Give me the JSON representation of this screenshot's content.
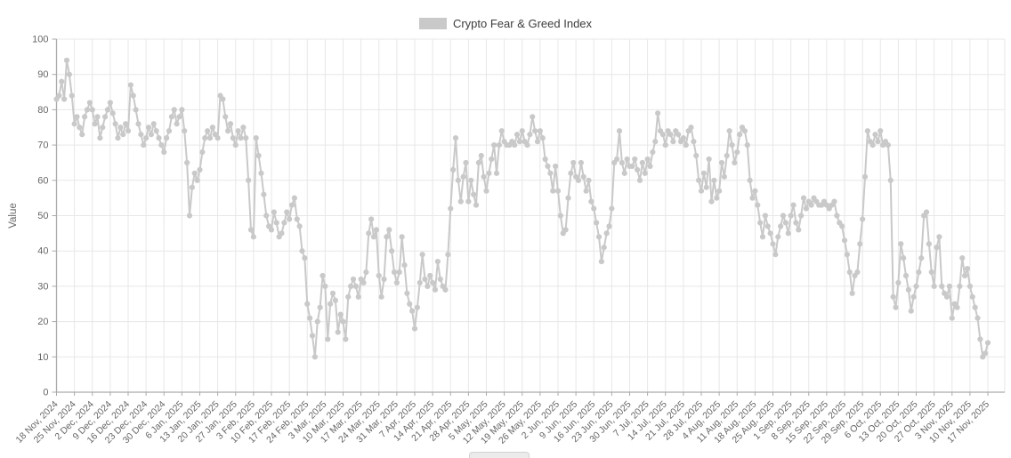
{
  "legend": {
    "items": [
      {
        "label": "Crypto Fear & Greed Index",
        "swatch_color": "#c9c9c9"
      }
    ]
  },
  "chart_data": {
    "type": "line",
    "title": "Crypto Fear & Greed Index",
    "xlabel": "",
    "ylabel": "Value",
    "ylim": [
      0,
      100
    ],
    "y_ticks": [
      0,
      10,
      20,
      30,
      40,
      50,
      60,
      70,
      80,
      90,
      100
    ],
    "grid": true,
    "legend_position": "top-center",
    "marker": "circle",
    "line_color": "#c9c9c9",
    "grid_color": "#e7e7e7",
    "axis_color": "#aaaaaa",
    "tick_text_color": "#666666",
    "days_per_x_tick": 7,
    "x_tick_labels": [
      "18 Nov, 2024",
      "25 Nov, 2024",
      "2 Dec, 2024",
      "9 Dec, 2024",
      "16 Dec, 2024",
      "23 Dec, 2024",
      "30 Dec, 2024",
      "6 Jan, 2025",
      "13 Jan, 2025",
      "20 Jan, 2025",
      "27 Jan, 2025",
      "3 Feb, 2025",
      "10 Feb, 2025",
      "17 Feb, 2025",
      "24 Feb, 2025",
      "3 Mar, 2025",
      "10 Mar, 2025",
      "17 Mar, 2025",
      "24 Mar, 2025",
      "31 Mar, 2025",
      "7 Apr, 2025",
      "14 Apr, 2025",
      "21 Apr, 2025",
      "28 Apr, 2025",
      "5 May, 2025",
      "12 May, 2025",
      "19 May, 2025",
      "26 May, 2025",
      "2 Jun, 2025",
      "9 Jun, 2025",
      "16 Jun, 2025",
      "23 Jun, 2025",
      "30 Jun, 2025",
      "7 Jul, 2025",
      "14 Jul, 2025",
      "21 Jul, 2025",
      "28 Jul, 2025",
      "4 Aug, 2025",
      "11 Aug, 2025",
      "18 Aug, 2025",
      "25 Aug, 2025",
      "1 Sep, 2025",
      "8 Sep, 2025",
      "15 Sep, 2025",
      "22 Sep, 2025",
      "29 Sep, 2025",
      "6 Oct, 2025",
      "13 Oct, 2025",
      "20 Oct, 2025",
      "27 Oct, 2025",
      "3 Nov, 2025",
      "10 Nov, 2025",
      "17 Nov, 2025"
    ],
    "series": [
      {
        "name": "Crypto Fear & Greed Index",
        "color": "#c9c9c9",
        "values": [
          83,
          84,
          88,
          83,
          94,
          90,
          84,
          76,
          78,
          75,
          73,
          78,
          80,
          82,
          80,
          76,
          78,
          72,
          75,
          78,
          80,
          82,
          79,
          76,
          72,
          75,
          73,
          76,
          74,
          87,
          84,
          80,
          76,
          73,
          70,
          72,
          75,
          73,
          76,
          74,
          72,
          70,
          68,
          72,
          74,
          78,
          80,
          76,
          78,
          80,
          74,
          65,
          50,
          58,
          62,
          60,
          63,
          68,
          72,
          74,
          72,
          75,
          73,
          72,
          84,
          83,
          78,
          74,
          76,
          72,
          70,
          74,
          72,
          75,
          72,
          60,
          46,
          44,
          72,
          67,
          62,
          56,
          50,
          47,
          46,
          51,
          48,
          44,
          45,
          48,
          51,
          49,
          53,
          55,
          49,
          47,
          40,
          38,
          25,
          21,
          16,
          10,
          20,
          24,
          33,
          30,
          15,
          25,
          28,
          26,
          17,
          22,
          20,
          15,
          27,
          30,
          32,
          30,
          27,
          32,
          31,
          34,
          45,
          49,
          44,
          46,
          33,
          27,
          32,
          44,
          46,
          40,
          34,
          31,
          34,
          44,
          36,
          28,
          25,
          23,
          18,
          24,
          31,
          39,
          32,
          30,
          33,
          31,
          29,
          37,
          32,
          30,
          29,
          39,
          52,
          63,
          72,
          60,
          54,
          61,
          65,
          54,
          60,
          56,
          53,
          65,
          67,
          61,
          57,
          62,
          66,
          70,
          62,
          70,
          74,
          71,
          70,
          70,
          71,
          70,
          73,
          71,
          74,
          71,
          70,
          73,
          78,
          74,
          71,
          74,
          72,
          66,
          64,
          62,
          57,
          64,
          57,
          50,
          45,
          46,
          55,
          62,
          65,
          61,
          60,
          65,
          61,
          57,
          60,
          54,
          52,
          48,
          44,
          37,
          41,
          45,
          47,
          52,
          65,
          66,
          74,
          65,
          62,
          66,
          64,
          64,
          66,
          63,
          60,
          65,
          62,
          66,
          64,
          68,
          71,
          79,
          74,
          73,
          70,
          74,
          73,
          71,
          74,
          73,
          71,
          72,
          70,
          74,
          75,
          71,
          67,
          60,
          57,
          62,
          58,
          66,
          54,
          60,
          55,
          57,
          65,
          61,
          67,
          74,
          70,
          65,
          68,
          73,
          75,
          74,
          70,
          60,
          55,
          57,
          53,
          48,
          44,
          50,
          47,
          45,
          42,
          39,
          44,
          47,
          50,
          48,
          45,
          50,
          53,
          48,
          46,
          50,
          55,
          52,
          54,
          53,
          55,
          54,
          53,
          53,
          54,
          53,
          52,
          53,
          54,
          50,
          48,
          47,
          43,
          39,
          34,
          28,
          33,
          34,
          42,
          49,
          61,
          74,
          71,
          70,
          73,
          71,
          74,
          70,
          71,
          70,
          60,
          27,
          24,
          31,
          42,
          38,
          33,
          29,
          23,
          27,
          30,
          34,
          38,
          50,
          51,
          42,
          34,
          30,
          41,
          44,
          30,
          28,
          27,
          30,
          21,
          25,
          24,
          30,
          38,
          33,
          35,
          30,
          27,
          24,
          21,
          15,
          10,
          11,
          14
        ]
      }
    ]
  }
}
